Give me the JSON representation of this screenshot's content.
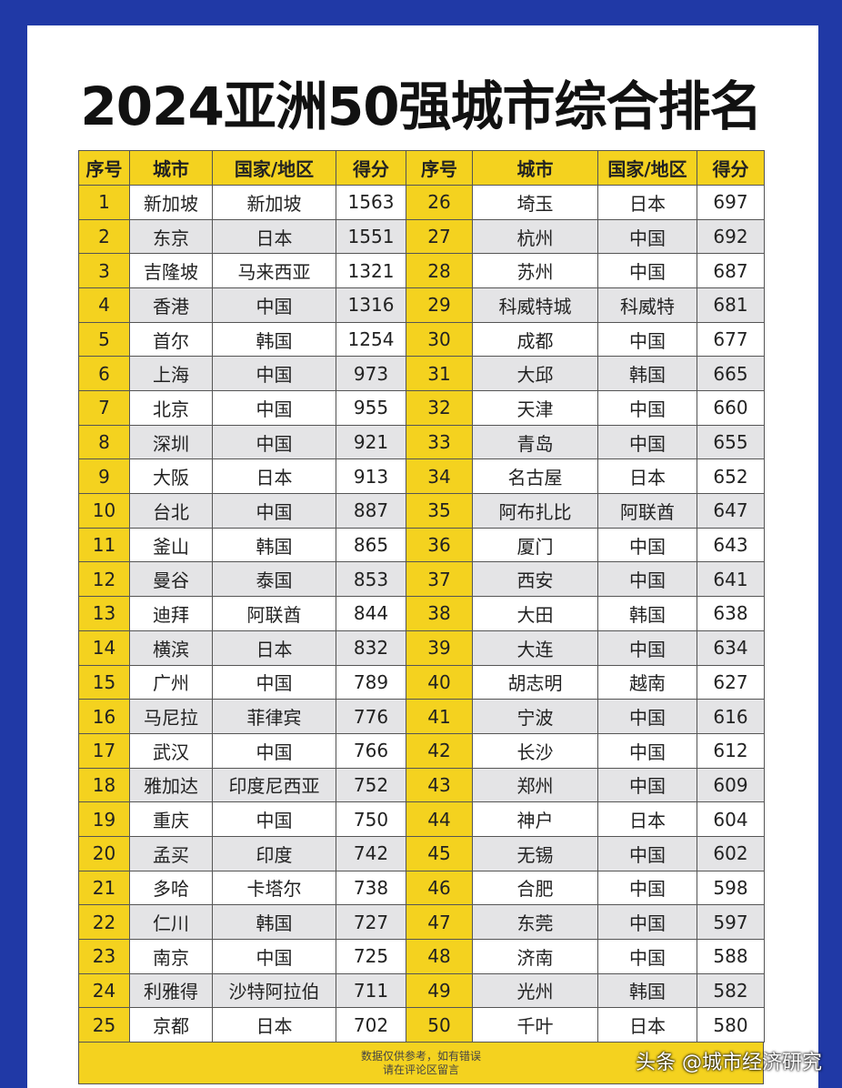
{
  "title": "2024亚洲50强城市综合排名",
  "table": {
    "header": [
      "序号",
      "城市",
      "国家/地区",
      "得分",
      "序号",
      "城市",
      "国家/地区",
      "得分"
    ],
    "rows": [
      [
        1,
        "新加坡",
        "新加坡",
        1563,
        26,
        "埼玉",
        "日本",
        697
      ],
      [
        2,
        "东京",
        "日本",
        1551,
        27,
        "杭州",
        "中国",
        692
      ],
      [
        3,
        "吉隆坡",
        "马来西亚",
        1321,
        28,
        "苏州",
        "中国",
        687
      ],
      [
        4,
        "香港",
        "中国",
        1316,
        29,
        "科威特城",
        "科威特",
        681
      ],
      [
        5,
        "首尔",
        "韩国",
        1254,
        30,
        "成都",
        "中国",
        677
      ],
      [
        6,
        "上海",
        "中国",
        973,
        31,
        "大邱",
        "韩国",
        665
      ],
      [
        7,
        "北京",
        "中国",
        955,
        32,
        "天津",
        "中国",
        660
      ],
      [
        8,
        "深圳",
        "中国",
        921,
        33,
        "青岛",
        "中国",
        655
      ],
      [
        9,
        "大阪",
        "日本",
        913,
        34,
        "名古屋",
        "日本",
        652
      ],
      [
        10,
        "台北",
        "中国",
        887,
        35,
        "阿布扎比",
        "阿联酋",
        647
      ],
      [
        11,
        "釜山",
        "韩国",
        865,
        36,
        "厦门",
        "中国",
        643
      ],
      [
        12,
        "曼谷",
        "泰国",
        853,
        37,
        "西安",
        "中国",
        641
      ],
      [
        13,
        "迪拜",
        "阿联酋",
        844,
        38,
        "大田",
        "韩国",
        638
      ],
      [
        14,
        "横滨",
        "日本",
        832,
        39,
        "大连",
        "中国",
        634
      ],
      [
        15,
        "广州",
        "中国",
        789,
        40,
        "胡志明",
        "越南",
        627
      ],
      [
        16,
        "马尼拉",
        "菲律宾",
        776,
        41,
        "宁波",
        "中国",
        616
      ],
      [
        17,
        "武汉",
        "中国",
        766,
        42,
        "长沙",
        "中国",
        612
      ],
      [
        18,
        "雅加达",
        "印度尼西亚",
        752,
        43,
        "郑州",
        "中国",
        609
      ],
      [
        19,
        "重庆",
        "中国",
        750,
        44,
        "神户",
        "日本",
        604
      ],
      [
        20,
        "孟买",
        "印度",
        742,
        45,
        "无锡",
        "中国",
        602
      ],
      [
        21,
        "多哈",
        "卡塔尔",
        738,
        46,
        "合肥",
        "中国",
        598
      ],
      [
        22,
        "仁川",
        "韩国",
        727,
        47,
        "东莞",
        "中国",
        597
      ],
      [
        23,
        "南京",
        "中国",
        725,
        48,
        "济南",
        "中国",
        588
      ],
      [
        24,
        "利雅得",
        "沙特阿拉伯",
        711,
        49,
        "光州",
        "韩国",
        582
      ],
      [
        25,
        "京都",
        "日本",
        702,
        50,
        "千叶",
        "日本",
        580
      ]
    ]
  },
  "footer": {
    "lines": [
      "数据仅供参考，如有错误",
      "请在评论区留言"
    ]
  },
  "watermark": "头条 @城市经济研究"
}
